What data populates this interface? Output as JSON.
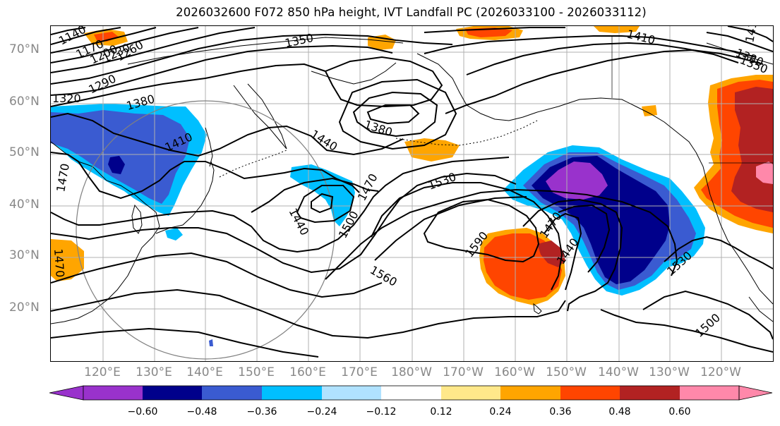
{
  "title": "2026032600 F072 850 hPa height, IVT Landfall PC (2026033100 - 2026033112)",
  "lat_labels": [
    "70°N",
    "60°N",
    "50°N",
    "40°N",
    "30°N",
    "20°N"
  ],
  "lon_labels": [
    "120°E",
    "130°E",
    "140°E",
    "150°E",
    "160°E",
    "170°E",
    "180°W",
    "170°W",
    "160°W",
    "150°W",
    "140°W",
    "130°W",
    "120°W"
  ],
  "colorbar": {
    "ticks": [
      "−0.60",
      "−0.48",
      "−0.36",
      "−0.24",
      "−0.12",
      "0.12",
      "0.24",
      "0.36",
      "0.48",
      "0.60"
    ],
    "colors": [
      "#9932cc",
      "#00008b",
      "#3a5bd1",
      "#00bfff",
      "#b0e2ff",
      "#ffffff",
      "#ffe88a",
      "#ffa500",
      "#ff4500",
      "#b22222",
      "#ff88aa"
    ]
  },
  "contour_labels": [
    "1140",
    "1170",
    "1200",
    "1230",
    "1260",
    "1290",
    "1320",
    "1350",
    "1380",
    "1410",
    "1380",
    "1440",
    "1410",
    "1470",
    "1470",
    "1440",
    "1500",
    "1530",
    "1590",
    "1560",
    "1470",
    "1440",
    "1530",
    "1500",
    "1410",
    "1350",
    "1380",
    "1470"
  ],
  "colors": {
    "land_outline": "#000000",
    "contour": "#000000",
    "grid": "#b0b0b0",
    "circle": "#808080"
  }
}
